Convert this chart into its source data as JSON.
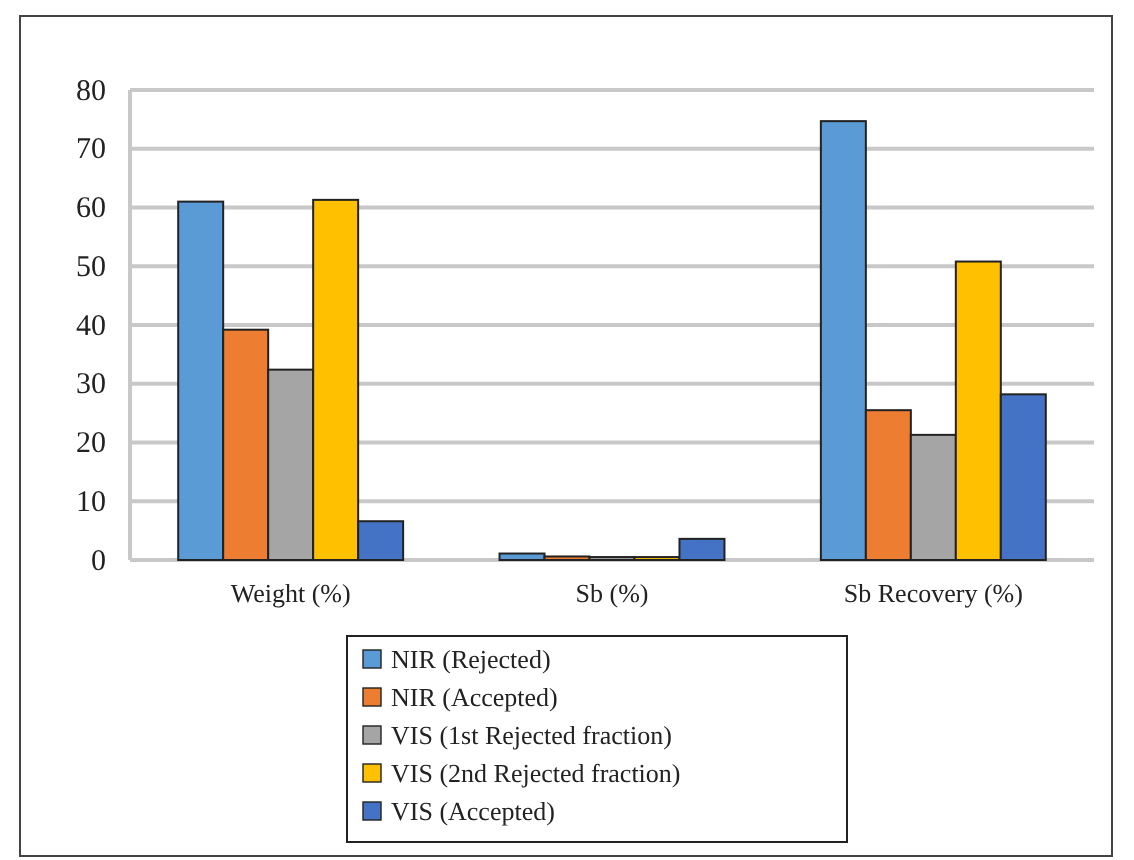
{
  "chart_data": {
    "type": "bar",
    "categories": [
      "Weight (%)",
      "Sb (%)",
      "Sb Recovery (%)"
    ],
    "series": [
      {
        "name": "NIR (Rejected)",
        "color": "#5b9bd5",
        "values": [
          61,
          1.1,
          74.7
        ]
      },
      {
        "name": "NIR (Accepted)",
        "color": "#ed7d31",
        "values": [
          39.2,
          0.6,
          25.5
        ]
      },
      {
        "name": "VIS (1st Rejected fraction)",
        "color": "#a5a5a5",
        "values": [
          32.4,
          0.5,
          21.3
        ]
      },
      {
        "name": "VIS (2nd Rejected fraction)",
        "color": "#ffc000",
        "values": [
          61.3,
          0.5,
          50.8
        ]
      },
      {
        "name": "VIS (Accepted)",
        "color": "#4472c4",
        "values": [
          6.6,
          3.6,
          28.2
        ]
      }
    ],
    "ylim": [
      0,
      80
    ],
    "yticks": [
      0,
      10,
      20,
      30,
      40,
      50,
      60,
      70,
      80
    ],
    "grid": "y",
    "legend": "bottom"
  }
}
